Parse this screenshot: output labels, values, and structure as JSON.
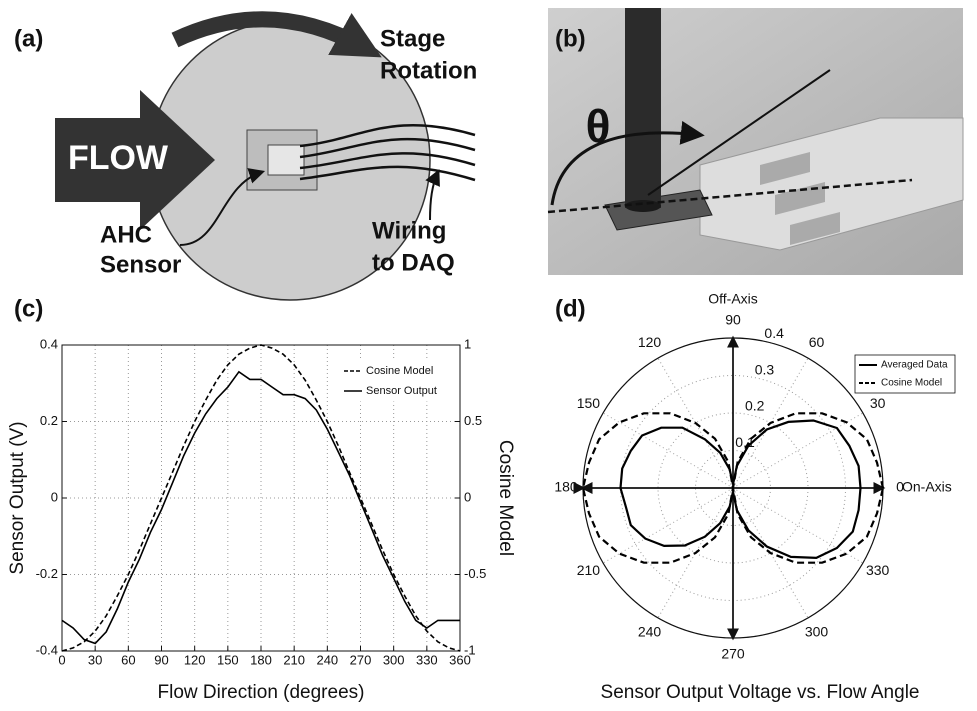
{
  "panel_labels": [
    "(a)",
    "(b)",
    "(c)",
    "(d)"
  ],
  "diagram_a": {
    "labels": [
      "Stage",
      "Rotation",
      "FLOW",
      "AHC",
      "Sensor",
      "Wiring",
      "to DAQ"
    ]
  },
  "diagram_b": {
    "labels": [
      "θ"
    ]
  },
  "chart_data": [
    {
      "type": "line",
      "xlabel": "Flow Direction (degrees)",
      "ylabel": "Sensor Output (V)",
      "y2label": "Cosine Model",
      "x": [
        0,
        10,
        20,
        30,
        40,
        50,
        60,
        70,
        80,
        90,
        100,
        110,
        120,
        130,
        140,
        150,
        160,
        170,
        180,
        190,
        200,
        210,
        220,
        230,
        240,
        250,
        260,
        270,
        280,
        290,
        300,
        310,
        320,
        330,
        340,
        350,
        360
      ],
      "series": [
        {
          "name": "Cosine Model",
          "color": "#000",
          "dash": true,
          "axis": "y2",
          "values": [
            -1,
            -0.98,
            -0.94,
            -0.87,
            -0.77,
            -0.64,
            -0.5,
            -0.34,
            -0.17,
            0,
            0.17,
            0.34,
            0.5,
            0.64,
            0.77,
            0.87,
            0.94,
            0.98,
            1,
            0.98,
            0.94,
            0.87,
            0.77,
            0.64,
            0.5,
            0.34,
            0.17,
            0,
            -0.17,
            -0.34,
            -0.5,
            -0.64,
            -0.77,
            -0.87,
            -0.94,
            -0.98,
            -1
          ]
        },
        {
          "name": "Sensor Output",
          "color": "#000",
          "dash": false,
          "values": [
            -0.32,
            -0.34,
            -0.37,
            -0.38,
            -0.35,
            -0.29,
            -0.22,
            -0.16,
            -0.09,
            -0.03,
            0.04,
            0.11,
            0.17,
            0.22,
            0.26,
            0.29,
            0.33,
            0.31,
            0.31,
            0.29,
            0.27,
            0.27,
            0.26,
            0.23,
            0.18,
            0.12,
            0.06,
            -0.01,
            -0.08,
            -0.15,
            -0.21,
            -0.27,
            -0.32,
            -0.34,
            -0.32,
            -0.32,
            -0.32
          ]
        }
      ],
      "xlim": [
        0,
        360
      ],
      "xticks": [
        0,
        30,
        60,
        90,
        120,
        150,
        180,
        210,
        240,
        270,
        300,
        330,
        360
      ],
      "ylim": [
        -0.4,
        0.4
      ],
      "yticks": [
        -0.4,
        -0.2,
        0,
        0.2,
        0.4
      ],
      "y2lim": [
        -1,
        1
      ],
      "y2ticks": [
        -1,
        -0.5,
        0,
        0.5,
        1
      ],
      "grid": true,
      "legend": "upper right"
    },
    {
      "type": "polar",
      "title": "Sensor Output Voltage vs. Flow Angle",
      "annotations": [
        "Off-Axis",
        "On-Axis"
      ],
      "theta": [
        0,
        10,
        20,
        30,
        40,
        50,
        60,
        70,
        80,
        90,
        100,
        110,
        120,
        130,
        140,
        150,
        160,
        170,
        180,
        190,
        200,
        210,
        220,
        230,
        240,
        250,
        260,
        270,
        280,
        290,
        300,
        310,
        320,
        330,
        340,
        350
      ],
      "series": [
        {
          "name": "Averaged Data",
          "color": "#000",
          "dash": false,
          "values": [
            0.34,
            0.34,
            0.33,
            0.32,
            0.28,
            0.23,
            0.18,
            0.12,
            0.06,
            0.01,
            0.05,
            0.1,
            0.15,
            0.21,
            0.25,
            0.28,
            0.29,
            0.3,
            0.3,
            0.29,
            0.29,
            0.27,
            0.24,
            0.2,
            0.15,
            0.1,
            0.05,
            0.01,
            0.06,
            0.12,
            0.18,
            0.24,
            0.29,
            0.32,
            0.34,
            0.34
          ]
        },
        {
          "name": "Cosine Model",
          "color": "#000",
          "dash": true,
          "values": [
            0.4,
            0.39,
            0.38,
            0.35,
            0.31,
            0.26,
            0.2,
            0.14,
            0.07,
            0,
            0.07,
            0.14,
            0.2,
            0.26,
            0.31,
            0.35,
            0.38,
            0.39,
            0.4,
            0.39,
            0.38,
            0.35,
            0.31,
            0.26,
            0.2,
            0.14,
            0.07,
            0,
            0.07,
            0.14,
            0.2,
            0.26,
            0.31,
            0.35,
            0.38,
            0.39
          ]
        }
      ],
      "rlim": [
        0,
        0.4
      ],
      "rticks": [
        0.1,
        0.2,
        0.3,
        0.4
      ],
      "thetaticks": [
        0,
        30,
        60,
        90,
        120,
        150,
        180,
        210,
        240,
        270,
        300,
        330
      ],
      "grid": true,
      "legend": "upper right"
    }
  ]
}
